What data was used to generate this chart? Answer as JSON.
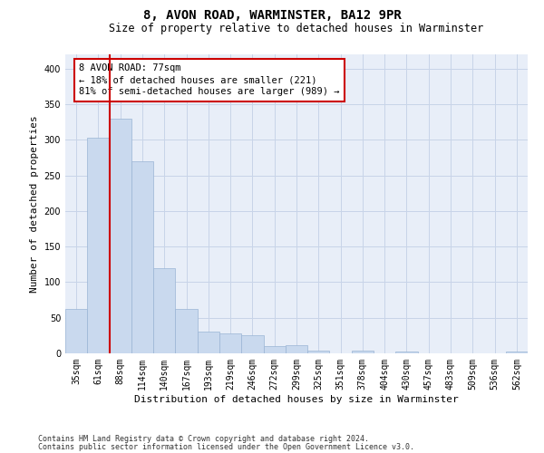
{
  "title": "8, AVON ROAD, WARMINSTER, BA12 9PR",
  "subtitle": "Size of property relative to detached houses in Warminster",
  "xlabel": "Distribution of detached houses by size in Warminster",
  "ylabel": "Number of detached properties",
  "footnote1": "Contains HM Land Registry data © Crown copyright and database right 2024.",
  "footnote2": "Contains public sector information licensed under the Open Government Licence v3.0.",
  "bar_labels": [
    "35sqm",
    "61sqm",
    "88sqm",
    "114sqm",
    "140sqm",
    "167sqm",
    "193sqm",
    "219sqm",
    "246sqm",
    "272sqm",
    "299sqm",
    "325sqm",
    "351sqm",
    "378sqm",
    "404sqm",
    "430sqm",
    "457sqm",
    "483sqm",
    "509sqm",
    "536sqm",
    "562sqm"
  ],
  "bar_values": [
    62,
    303,
    330,
    270,
    120,
    63,
    30,
    28,
    25,
    10,
    12,
    4,
    0,
    4,
    0,
    3,
    0,
    0,
    0,
    0,
    3
  ],
  "bar_color": "#c9d9ee",
  "bar_edgecolor": "#9ab4d4",
  "vline_x": 1.5,
  "vline_color": "#cc0000",
  "annotation_text": "8 AVON ROAD: 77sqm\n← 18% of detached houses are smaller (221)\n81% of semi-detached houses are larger (989) →",
  "annotation_box_facecolor": "#ffffff",
  "annotation_box_edgecolor": "#cc0000",
  "ylim": [
    0,
    420
  ],
  "yticks": [
    0,
    50,
    100,
    150,
    200,
    250,
    300,
    350,
    400
  ],
  "grid_color": "#c8d4e8",
  "background_color": "#e8eef8",
  "title_fontsize": 10,
  "subtitle_fontsize": 8.5,
  "ylabel_fontsize": 8,
  "xlabel_fontsize": 8,
  "tick_fontsize": 7,
  "annot_fontsize": 7.5,
  "footnote_fontsize": 6
}
